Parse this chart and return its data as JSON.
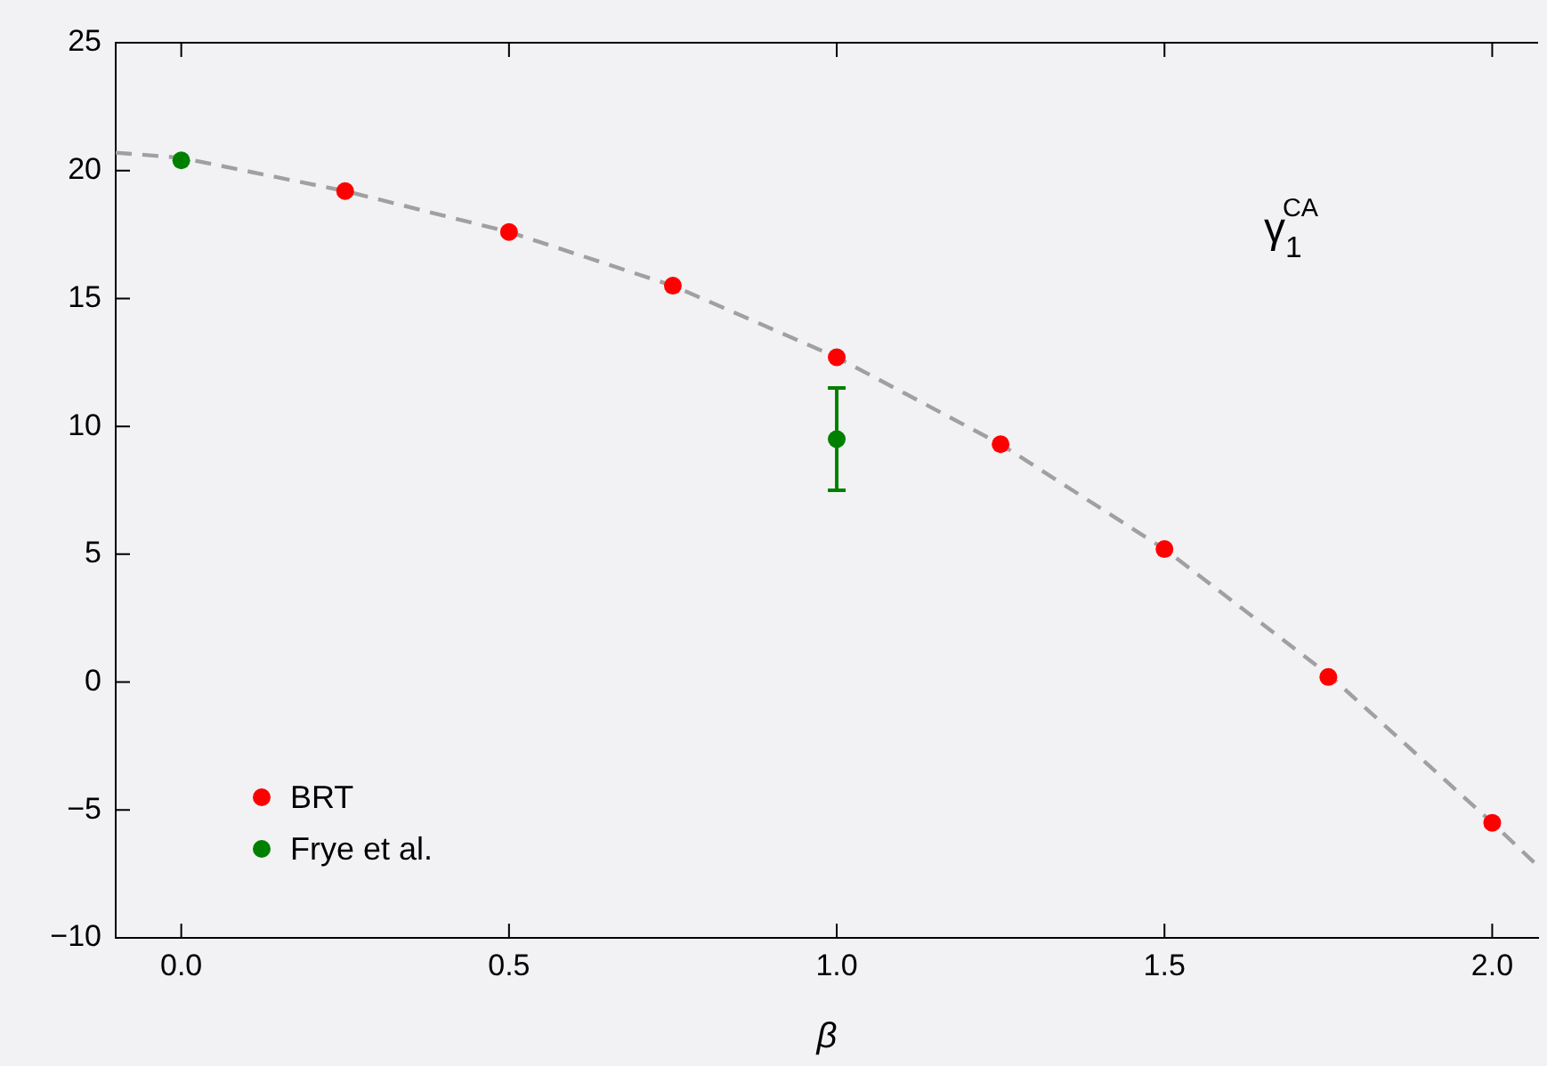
{
  "chart_data": {
    "type": "scatter",
    "xlabel": "β",
    "annotations": [
      "γ$_{1}$$^{CA}$"
    ],
    "series": [
      {
        "name": "BRT",
        "color": "#ff0000",
        "x": [
          0.25,
          0.5,
          0.75,
          1.0,
          1.25,
          1.5,
          1.75,
          2.0
        ],
        "values": [
          19.2,
          17.6,
          15.5,
          12.7,
          9.3,
          5.2,
          0.2,
          -5.5
        ]
      },
      {
        "name": "Frye et al.",
        "color": "#008000",
        "x": [
          0.0,
          1.0
        ],
        "values": [
          20.4,
          9.5
        ],
        "errors": [
          null,
          2
        ]
      },
      {
        "type": "line",
        "color": "#a0a0a0",
        "line_style": "dashed",
        "marker": "none",
        "x": [
          -0.1,
          0.0,
          0.25,
          0.5,
          0.75,
          1.0,
          1.25,
          1.5,
          1.75,
          2.0,
          2.07
        ],
        "values": [
          20.7,
          20.5,
          19.2,
          17.6,
          15.5,
          12.7,
          9.3,
          5.2,
          0.3,
          -5.5,
          -7.2
        ]
      }
    ],
    "xlim": [
      -0.1,
      2.07
    ],
    "ylim": [
      -10,
      25
    ],
    "xticks": [
      {
        "value": 0,
        "label": "0.0"
      },
      {
        "value": 0.5,
        "label": "0.5"
      },
      {
        "value": 1,
        "label": "1.0"
      },
      {
        "value": 1.5,
        "label": "1.5"
      },
      {
        "value": 2,
        "label": "2.0"
      }
    ],
    "yticks": [
      {
        "value": -10,
        "label": "−10"
      },
      {
        "value": -5,
        "label": "−5"
      },
      0,
      5,
      10,
      15,
      20,
      25
    ],
    "marker": "circle",
    "grid": false,
    "legend": "bottom left"
  }
}
